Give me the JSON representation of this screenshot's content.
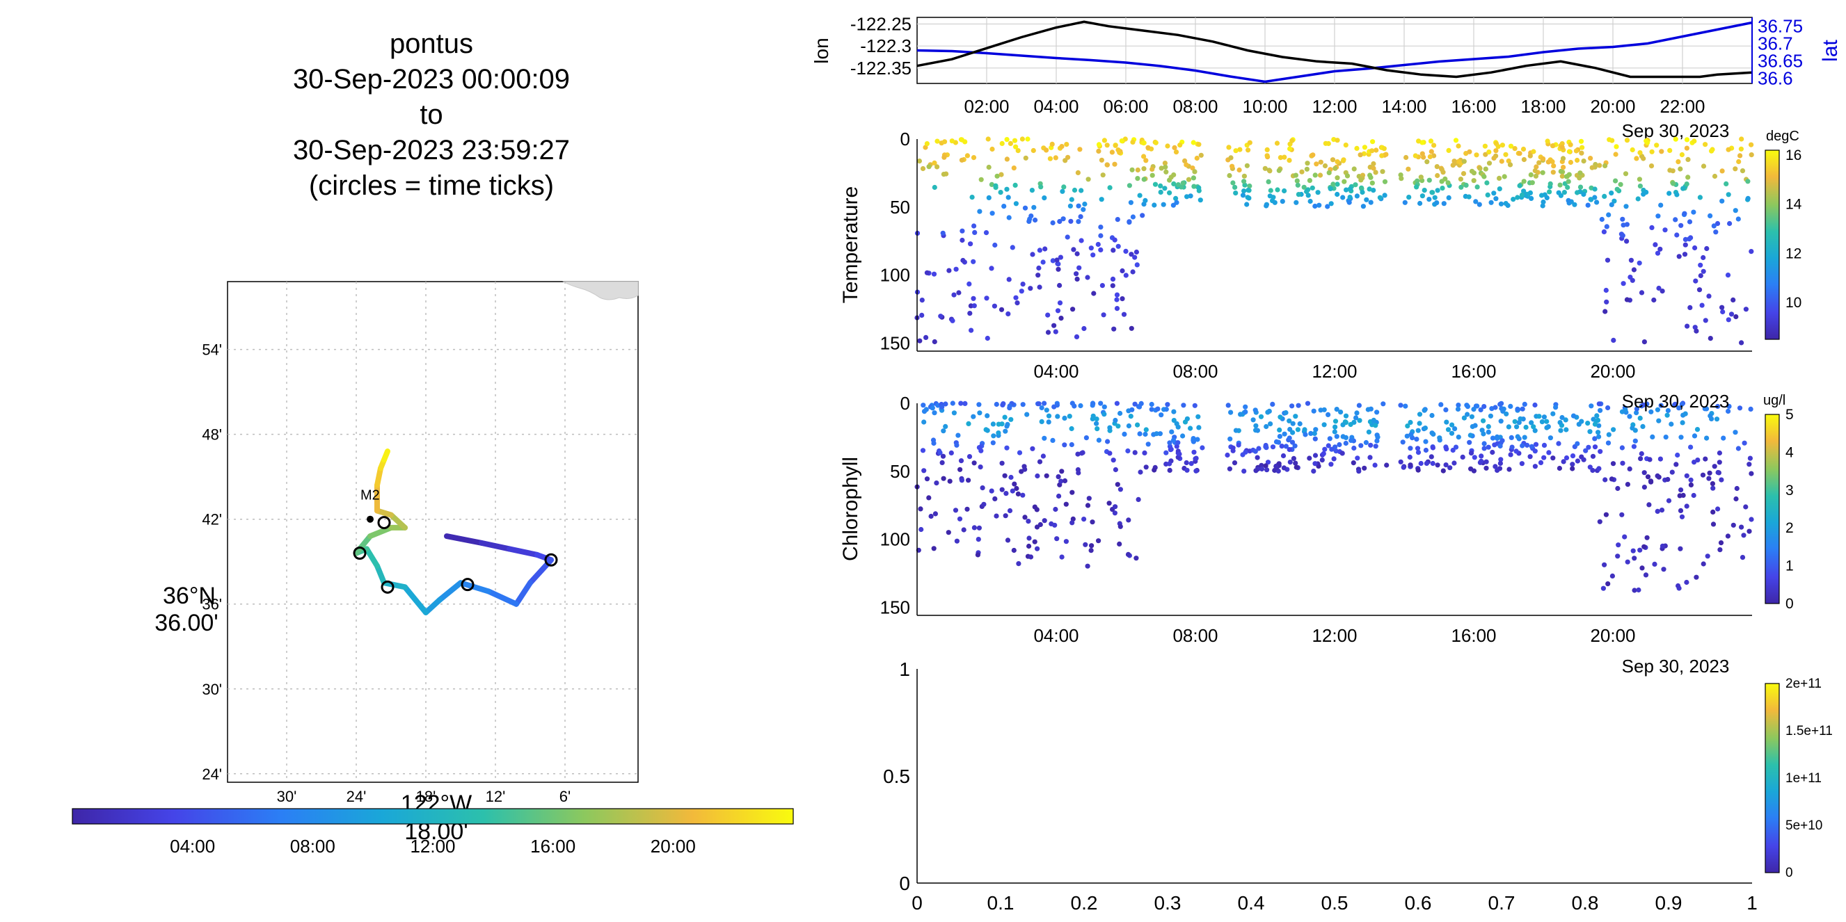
{
  "title": {
    "lines": [
      "pontus",
      "30-Sep-2023 00:00:09",
      "to",
      "30-Sep-2023 23:59:27",
      "(circles = time ticks)"
    ]
  },
  "colors": {
    "lat_axis": "#0000dd",
    "lon_line": "#000000",
    "grid": "#d0d0d0"
  },
  "chart_data": [
    {
      "id": "track-map",
      "type": "line",
      "title": "",
      "lon_ticks": [
        "30'",
        "24'",
        "18'",
        "12'",
        "6'"
      ],
      "lon_tick_values": [
        -122.5,
        -122.4,
        -122.3,
        -122.2,
        -122.1
      ],
      "lat_ticks": [
        "54'",
        "48'",
        "42'",
        "36'",
        "30'",
        "24'"
      ],
      "lat_tick_values": [
        36.9,
        36.8,
        36.7,
        36.6,
        36.5,
        36.4
      ],
      "xlabel": [
        "122°W",
        "18.00'"
      ],
      "ylabel": [
        "36°N",
        "36.00'"
      ],
      "xlim": [
        -122.585,
        -121.995
      ],
      "ylim": [
        36.39,
        36.98
      ],
      "mooring": {
        "label": "M2",
        "lon": -122.38,
        "lat": 36.7
      },
      "track": [
        {
          "hour": 0.0,
          "lon": -122.27,
          "lat": 36.68
        },
        {
          "hour": 1.0,
          "lon": -122.22,
          "lat": 36.672
        },
        {
          "hour": 2.0,
          "lon": -122.18,
          "lat": 36.665
        },
        {
          "hour": 3.0,
          "lon": -122.14,
          "lat": 36.658
        },
        {
          "hour": 4.0,
          "lon": -122.12,
          "lat": 36.652
        },
        {
          "hour": 5.0,
          "lon": -122.15,
          "lat": 36.625
        },
        {
          "hour": 6.0,
          "lon": -122.17,
          "lat": 36.6
        },
        {
          "hour": 7.0,
          "lon": -122.21,
          "lat": 36.615
        },
        {
          "hour": 8.0,
          "lon": -122.25,
          "lat": 36.625
        },
        {
          "hour": 9.0,
          "lon": -122.28,
          "lat": 36.605
        },
        {
          "hour": 10.0,
          "lon": -122.3,
          "lat": 36.59
        },
        {
          "hour": 11.0,
          "lon": -122.33,
          "lat": 36.62
        },
        {
          "hour": 12.0,
          "lon": -122.36,
          "lat": 36.625
        },
        {
          "hour": 13.0,
          "lon": -122.37,
          "lat": 36.645
        },
        {
          "hour": 14.0,
          "lon": -122.385,
          "lat": 36.665
        },
        {
          "hour": 15.0,
          "lon": -122.4,
          "lat": 36.66
        },
        {
          "hour": 16.0,
          "lon": -122.38,
          "lat": 36.68
        },
        {
          "hour": 17.0,
          "lon": -122.35,
          "lat": 36.69
        },
        {
          "hour": 18.0,
          "lon": -122.33,
          "lat": 36.69
        },
        {
          "hour": 19.0,
          "lon": -122.35,
          "lat": 36.705
        },
        {
          "hour": 20.0,
          "lon": -122.37,
          "lat": 36.71
        },
        {
          "hour": 21.0,
          "lon": -122.37,
          "lat": 36.74
        },
        {
          "hour": 22.0,
          "lon": -122.365,
          "lat": 36.76
        },
        {
          "hour": 23.0,
          "lon": -122.36,
          "lat": 36.77
        },
        {
          "hour": 24.0,
          "lon": -122.355,
          "lat": 36.78
        }
      ],
      "time_tick_circles": [
        {
          "label": "04:00",
          "lon": -122.12,
          "lat": 36.652
        },
        {
          "label": "08:00",
          "lon": -122.24,
          "lat": 36.623
        },
        {
          "label": "12:00",
          "lon": -122.355,
          "lat": 36.62
        },
        {
          "label": "16:00",
          "lon": -122.395,
          "lat": 36.66
        },
        {
          "label": "20:00",
          "lon": -122.36,
          "lat": 36.696
        }
      ],
      "colorbar": {
        "ticks": [
          "04:00",
          "08:00",
          "12:00",
          "16:00",
          "20:00"
        ],
        "tick_hours": [
          4,
          8,
          12,
          16,
          20
        ],
        "range_hours": [
          0,
          24
        ]
      }
    },
    {
      "id": "lon-lat",
      "type": "line",
      "ylabel_left": "lon",
      "ylabel_right": "lat",
      "x_ticks": [
        "02:00",
        "04:00",
        "06:00",
        "08:00",
        "10:00",
        "12:00",
        "14:00",
        "16:00",
        "18:00",
        "20:00",
        "22:00"
      ],
      "x_tick_hours": [
        2,
        4,
        6,
        8,
        10,
        12,
        14,
        16,
        18,
        20,
        22
      ],
      "date_label": "Sep 30, 2023",
      "xlim_hours": [
        0,
        24
      ],
      "left_ticks": [
        "-122.25",
        "-122.3",
        "-122.35"
      ],
      "left_tick_values": [
        -122.25,
        -122.3,
        -122.35
      ],
      "left_ylim": [
        -122.385,
        -122.235
      ],
      "right_ticks": [
        "36.75",
        "36.7",
        "36.65",
        "36.6"
      ],
      "right_tick_values": [
        36.75,
        36.7,
        36.65,
        36.6
      ],
      "right_ylim": [
        36.585,
        36.775
      ],
      "series": [
        {
          "name": "lon",
          "axis": "left",
          "x_hours": [
            0,
            1,
            2,
            3,
            4,
            4.8,
            5.5,
            6.5,
            7.5,
            8.5,
            9.5,
            10.5,
            11.5,
            12.5,
            13.5,
            14.5,
            15.5,
            16.5,
            17.5,
            18.5,
            19.5,
            20.5,
            21.5,
            22.5,
            23,
            24
          ],
          "values": [
            -122.345,
            -122.33,
            -122.305,
            -122.28,
            -122.258,
            -122.245,
            -122.255,
            -122.265,
            -122.275,
            -122.29,
            -122.31,
            -122.325,
            -122.335,
            -122.34,
            -122.355,
            -122.365,
            -122.37,
            -122.36,
            -122.345,
            -122.335,
            -122.35,
            -122.37,
            -122.37,
            -122.37,
            -122.365,
            -122.36
          ]
        },
        {
          "name": "lat",
          "axis": "right",
          "x_hours": [
            0,
            1,
            2,
            3,
            4,
            5,
            6,
            7,
            8,
            9,
            10,
            11,
            12,
            13,
            14,
            15,
            16,
            17,
            18,
            19,
            20,
            21,
            22,
            23,
            24
          ],
          "values": [
            36.68,
            36.678,
            36.672,
            36.665,
            36.658,
            36.652,
            36.645,
            36.635,
            36.622,
            36.605,
            36.59,
            36.605,
            36.62,
            36.628,
            36.638,
            36.648,
            36.655,
            36.662,
            36.675,
            36.685,
            36.69,
            36.7,
            36.72,
            36.74,
            36.76
          ]
        }
      ]
    },
    {
      "id": "temperature-scatter",
      "type": "scatter",
      "ylabel": "Temperature",
      "y_ticks": [
        "0",
        "50",
        "100",
        "150"
      ],
      "y_tick_values": [
        0,
        50,
        100,
        150
      ],
      "ylim": [
        0,
        156
      ],
      "y_reversed": true,
      "x_ticks": [
        "04:00",
        "08:00",
        "12:00",
        "16:00",
        "20:00"
      ],
      "x_tick_hours": [
        4,
        8,
        12,
        16,
        20
      ],
      "xlim_hours": [
        0,
        24
      ],
      "date_label": "Sep 30, 2023",
      "colorbar": {
        "label": "degC",
        "ticks": [
          "16",
          "14",
          "12",
          "10"
        ],
        "tick_values": [
          16,
          14,
          12,
          10
        ],
        "range": [
          8.5,
          16.2
        ]
      },
      "profiles": {
        "segments": [
          {
            "start_hour": 0.0,
            "end_hour": 6.5,
            "max_depth": 150
          },
          {
            "start_hour": 6.5,
            "end_hour": 8.2,
            "max_depth": 50
          },
          {
            "start_hour": 8.9,
            "end_hour": 9.6,
            "max_depth": 50
          },
          {
            "start_hour": 10.0,
            "end_hour": 13.5,
            "max_depth": 50
          },
          {
            "start_hour": 13.9,
            "end_hour": 19.6,
            "max_depth": 50
          },
          {
            "start_hour": 19.6,
            "end_hour": 24.0,
            "max_depth": 150
          }
        ],
        "surface_value": 16,
        "thermocline_depth": 30,
        "deep_value": 9
      }
    },
    {
      "id": "chlorophyll-scatter",
      "type": "scatter",
      "ylabel": "Chlorophyll",
      "y_ticks": [
        "0",
        "50",
        "100",
        "150"
      ],
      "y_tick_values": [
        0,
        50,
        100,
        150
      ],
      "ylim": [
        0,
        156
      ],
      "y_reversed": true,
      "x_ticks": [
        "04:00",
        "08:00",
        "12:00",
        "16:00",
        "20:00"
      ],
      "x_tick_hours": [
        4,
        8,
        12,
        16,
        20
      ],
      "xlim_hours": [
        0,
        24
      ],
      "date_label": "Sep 30, 2023",
      "colorbar": {
        "label": "ug/l",
        "ticks": [
          "5",
          "4",
          "3",
          "2",
          "1",
          "0"
        ],
        "tick_values": [
          5,
          4,
          3,
          2,
          1,
          0
        ],
        "range": [
          0,
          5
        ]
      },
      "profiles": {
        "segments": [
          {
            "start_hour": 0.0,
            "end_hour": 6.5,
            "max_depth": 120
          },
          {
            "start_hour": 6.5,
            "end_hour": 8.2,
            "max_depth": 50
          },
          {
            "start_hour": 8.9,
            "end_hour": 13.5,
            "max_depth": 50
          },
          {
            "start_hour": 13.9,
            "end_hour": 19.6,
            "max_depth": 50
          },
          {
            "start_hour": 19.6,
            "end_hour": 24.0,
            "max_depth": 140
          }
        ],
        "peak_value": 2,
        "peak_depth": 15,
        "deep_value": 0.2
      }
    },
    {
      "id": "empty-axes",
      "type": "scatter",
      "x_ticks": [
        "0",
        "0.1",
        "0.2",
        "0.3",
        "0.4",
        "0.5",
        "0.6",
        "0.7",
        "0.8",
        "0.9",
        "1"
      ],
      "x_tick_values": [
        0,
        0.1,
        0.2,
        0.3,
        0.4,
        0.5,
        0.6,
        0.7,
        0.8,
        0.9,
        1
      ],
      "y_ticks": [
        "1",
        "0.5",
        "0"
      ],
      "y_tick_values": [
        1,
        0.5,
        0
      ],
      "xlim": [
        0,
        1
      ],
      "ylim": [
        0,
        1
      ],
      "colorbar": {
        "ticks": [
          "2e+11",
          "1.5e+11",
          "1e+11",
          "5e+10",
          "0"
        ],
        "tick_values": [
          200000000000.0,
          150000000000.0,
          100000000000.0,
          50000000000.0,
          0
        ],
        "range": [
          0,
          200000000000.0
        ]
      }
    }
  ]
}
